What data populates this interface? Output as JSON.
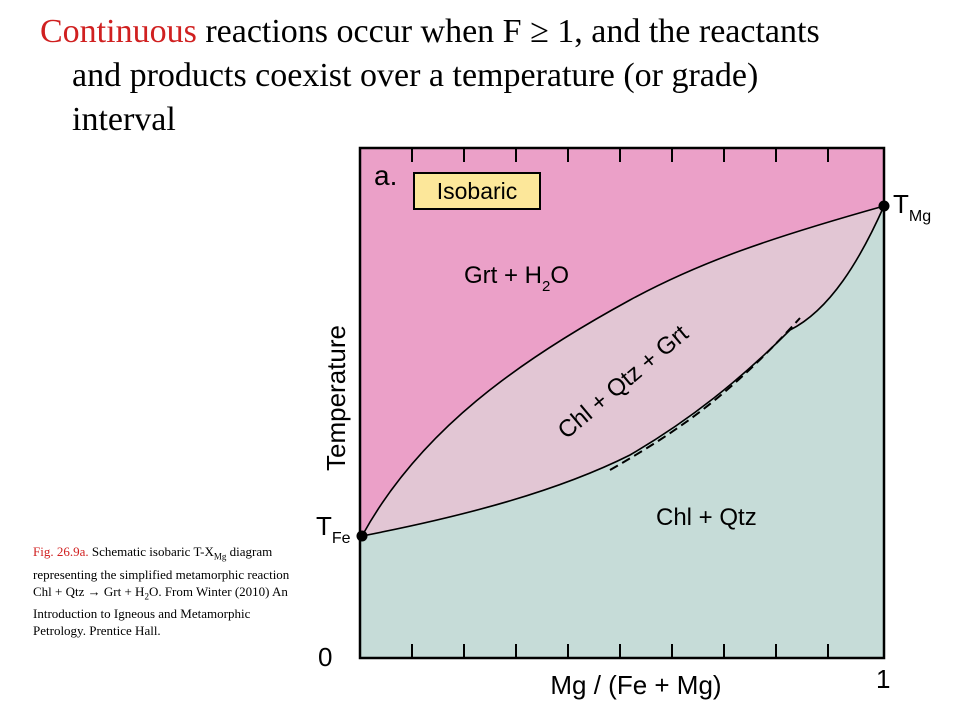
{
  "title": {
    "highlight": "Continuous",
    "line1_rest": " reactions occur when F ≥ 1, and the reactants",
    "line2": "and products coexist over a temperature (or grade)",
    "line3": "interval"
  },
  "caption": {
    "fig_label": "Fig. 26.9a.",
    "text_a": " Schematic isobaric T-X",
    "text_sub": "Mg",
    "text_b": " diagram representing the simplified metamorphic reaction Chl + Qtz → Grt + H",
    "text_sub2": "2",
    "text_c": "O.  From Winter (2010) An Introduction to Igneous and Metamorphic Petrology. Prentice Hall."
  },
  "diagram": {
    "panel_label": "a.",
    "isobaric_label": "Isobaric",
    "region_upper": "Grt + H",
    "region_upper_sub": "2",
    "region_upper_tail": "O",
    "region_middle": "Chl + Qtz + Grt",
    "region_lower": "Chl + Qtz",
    "y_axis_label": "Temperature",
    "x_axis_label": "Mg / (Fe + Mg)",
    "x_tick_0": "0",
    "x_tick_1": "1",
    "t_fe_main": "T",
    "t_fe_sub": "Fe",
    "t_mg_main": "T",
    "t_mg_sub": "Mg",
    "colors": {
      "upper": "#eba0c8",
      "middle": "#e2c6d4",
      "lower": "#c6dcd8",
      "label_box": "#fce79a",
      "highlight_text": "#d02020"
    }
  }
}
